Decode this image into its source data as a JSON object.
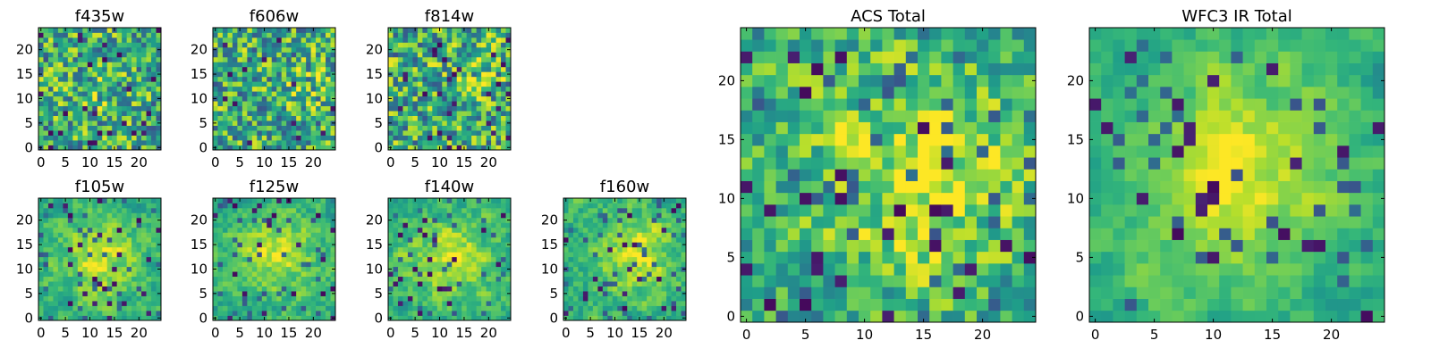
{
  "chart_data": [
    {
      "type": "heatmap",
      "id": "f435w",
      "title": "f435w",
      "xlabel": "",
      "ylabel": "",
      "grid_size": 25,
      "xlim": [
        -0.5,
        24.5
      ],
      "ylim": [
        -0.5,
        24.5
      ],
      "xticks": [
        0,
        5,
        10,
        15,
        20
      ],
      "yticks": [
        0,
        5,
        10,
        15,
        20
      ],
      "colormap": "viridis",
      "seed": 11,
      "blob": {
        "x": 11,
        "y": 11,
        "r": 4,
        "strength": 0.12
      },
      "noise": 0.55,
      "smooth": 0.15
    },
    {
      "type": "heatmap",
      "id": "f606w",
      "title": "f606w",
      "xlabel": "",
      "ylabel": "",
      "grid_size": 25,
      "xlim": [
        -0.5,
        24.5
      ],
      "ylim": [
        -0.5,
        24.5
      ],
      "xticks": [
        0,
        5,
        10,
        15,
        20
      ],
      "yticks": [
        0,
        5,
        10,
        15,
        20
      ],
      "colormap": "viridis",
      "seed": 23,
      "blob": {
        "x": 19,
        "y": 14,
        "r": 4,
        "strength": 0.12
      },
      "noise": 0.55,
      "smooth": 0.15
    },
    {
      "type": "heatmap",
      "id": "f814w",
      "title": "f814w",
      "xlabel": "",
      "ylabel": "",
      "grid_size": 25,
      "xlim": [
        -0.5,
        24.5
      ],
      "ylim": [
        -0.5,
        24.5
      ],
      "xticks": [
        0,
        5,
        10,
        15,
        20
      ],
      "yticks": [
        0,
        5,
        10,
        15,
        20
      ],
      "colormap": "viridis",
      "seed": 37,
      "blob": {
        "x": 19,
        "y": 14,
        "r": 5,
        "strength": 0.15
      },
      "noise": 0.55,
      "smooth": 0.15
    },
    {
      "type": "heatmap",
      "id": "f105w",
      "title": "f105w",
      "xlabel": "",
      "ylabel": "",
      "grid_size": 25,
      "xlim": [
        -0.5,
        24.5
      ],
      "ylim": [
        -0.5,
        24.5
      ],
      "xticks": [
        0,
        5,
        10,
        15,
        20
      ],
      "yticks": [
        0,
        5,
        10,
        15,
        20
      ],
      "colormap": "viridis",
      "seed": 41,
      "blob": {
        "x": 12,
        "y": 12,
        "r": 6,
        "strength": 0.3
      },
      "noise": 0.35,
      "smooth": 0.55
    },
    {
      "type": "heatmap",
      "id": "f125w",
      "title": "f125w",
      "xlabel": "",
      "ylabel": "",
      "grid_size": 25,
      "xlim": [
        -0.5,
        24.5
      ],
      "ylim": [
        -0.5,
        24.5
      ],
      "xticks": [
        0,
        5,
        10,
        15,
        20
      ],
      "yticks": [
        0,
        5,
        10,
        15,
        20
      ],
      "colormap": "viridis",
      "seed": 53,
      "blob": {
        "x": 13,
        "y": 13,
        "r": 6,
        "strength": 0.3
      },
      "noise": 0.35,
      "smooth": 0.55
    },
    {
      "type": "heatmap",
      "id": "f140w",
      "title": "f140w",
      "xlabel": "",
      "ylabel": "",
      "grid_size": 25,
      "xlim": [
        -0.5,
        24.5
      ],
      "ylim": [
        -0.5,
        24.5
      ],
      "xticks": [
        0,
        5,
        10,
        15,
        20
      ],
      "yticks": [
        0,
        5,
        10,
        15,
        20
      ],
      "colormap": "viridis",
      "seed": 67,
      "blob": {
        "x": 12,
        "y": 12,
        "r": 6,
        "strength": 0.3
      },
      "noise": 0.35,
      "smooth": 0.55
    },
    {
      "type": "heatmap",
      "id": "f160w",
      "title": "f160w",
      "xlabel": "",
      "ylabel": "",
      "grid_size": 25,
      "xlim": [
        -0.5,
        24.5
      ],
      "ylim": [
        -0.5,
        24.5
      ],
      "xticks": [
        0,
        5,
        10,
        15,
        20
      ],
      "yticks": [
        0,
        5,
        10,
        15,
        20
      ],
      "colormap": "viridis",
      "seed": 79,
      "blob": {
        "x": 15,
        "y": 13,
        "r": 6,
        "strength": 0.3
      },
      "noise": 0.35,
      "smooth": 0.55
    },
    {
      "type": "heatmap",
      "id": "acs-total",
      "title": "ACS Total",
      "xlabel": "",
      "ylabel": "",
      "grid_size": 25,
      "xlim": [
        -0.5,
        24.5
      ],
      "ylim": [
        -0.5,
        24.5
      ],
      "xticks": [
        0,
        5,
        10,
        15,
        20
      ],
      "yticks": [
        0,
        5,
        10,
        15,
        20
      ],
      "colormap": "viridis",
      "seed": 97,
      "blob": {
        "x": 15,
        "y": 12,
        "r": 6,
        "strength": 0.3
      },
      "noise": 0.45,
      "smooth": 0.3
    },
    {
      "type": "heatmap",
      "id": "wfc3-ir-total",
      "title": "WFC3 IR Total",
      "xlabel": "",
      "ylabel": "",
      "grid_size": 25,
      "xlim": [
        -0.5,
        24.5
      ],
      "ylim": [
        -0.5,
        24.5
      ],
      "xticks": [
        0,
        5,
        10,
        15,
        20
      ],
      "yticks": [
        0,
        5,
        10,
        15,
        20
      ],
      "colormap": "viridis",
      "seed": 113,
      "blob": {
        "x": 12,
        "y": 12,
        "r": 6,
        "strength": 0.35
      },
      "noise": 0.3,
      "smooth": 0.65
    }
  ]
}
